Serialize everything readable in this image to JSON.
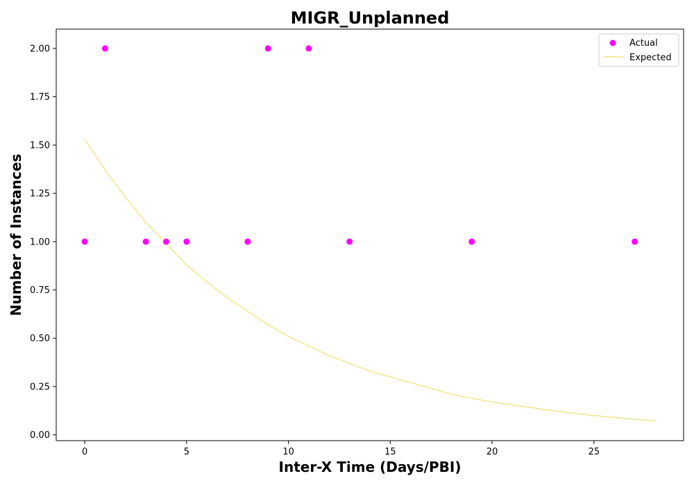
{
  "chart_data": {
    "type": "scatter",
    "title": "MIGR_Unplanned",
    "xlabel": "Inter-X Time (Days/PBI)",
    "ylabel": "Number of Instances",
    "xlim": [
      -1.4,
      29.4
    ],
    "ylim": [
      -0.03,
      2.1
    ],
    "x_ticks": [
      0,
      5,
      10,
      15,
      20,
      25
    ],
    "y_ticks": [
      0.0,
      0.25,
      0.5,
      0.75,
      1.0,
      1.25,
      1.5,
      1.75,
      2.0
    ],
    "x_tick_labels": [
      "0",
      "5",
      "10",
      "15",
      "20",
      "25"
    ],
    "y_tick_labels": [
      "0.00",
      "0.25",
      "0.50",
      "0.75",
      "1.00",
      "1.25",
      "1.50",
      "1.75",
      "2.00"
    ],
    "grid": false,
    "legend": "top-right",
    "series": [
      {
        "name": "Actual",
        "kind": "scatter",
        "color": "#ff00ff",
        "points": [
          {
            "x": 0,
            "y": 1
          },
          {
            "x": 1,
            "y": 2
          },
          {
            "x": 3,
            "y": 1
          },
          {
            "x": 4,
            "y": 1
          },
          {
            "x": 5,
            "y": 1
          },
          {
            "x": 8,
            "y": 1
          },
          {
            "x": 9,
            "y": 2
          },
          {
            "x": 11,
            "y": 2
          },
          {
            "x": 13,
            "y": 1
          },
          {
            "x": 19,
            "y": 1
          },
          {
            "x": 27,
            "y": 1
          }
        ]
      },
      {
        "name": "Expected",
        "kind": "line",
        "color": "#f0e68c",
        "points": [
          {
            "x": 0,
            "y": 1.53
          },
          {
            "x": 1,
            "y": 1.37
          },
          {
            "x": 2,
            "y": 1.23
          },
          {
            "x": 3,
            "y": 1.1
          },
          {
            "x": 4,
            "y": 0.99
          },
          {
            "x": 5,
            "y": 0.88
          },
          {
            "x": 6,
            "y": 0.79
          },
          {
            "x": 7,
            "y": 0.71
          },
          {
            "x": 8,
            "y": 0.64
          },
          {
            "x": 9,
            "y": 0.57
          },
          {
            "x": 10,
            "y": 0.51
          },
          {
            "x": 11,
            "y": 0.46
          },
          {
            "x": 12,
            "y": 0.41
          },
          {
            "x": 13,
            "y": 0.37
          },
          {
            "x": 14,
            "y": 0.33
          },
          {
            "x": 15,
            "y": 0.3
          },
          {
            "x": 16,
            "y": 0.27
          },
          {
            "x": 17,
            "y": 0.24
          },
          {
            "x": 18,
            "y": 0.21
          },
          {
            "x": 19,
            "y": 0.19
          },
          {
            "x": 20,
            "y": 0.17
          },
          {
            "x": 21,
            "y": 0.155
          },
          {
            "x": 22,
            "y": 0.14
          },
          {
            "x": 23,
            "y": 0.125
          },
          {
            "x": 24,
            "y": 0.112
          },
          {
            "x": 25,
            "y": 0.1
          },
          {
            "x": 26,
            "y": 0.09
          },
          {
            "x": 27,
            "y": 0.08
          },
          {
            "x": 28,
            "y": 0.072
          }
        ]
      }
    ]
  }
}
